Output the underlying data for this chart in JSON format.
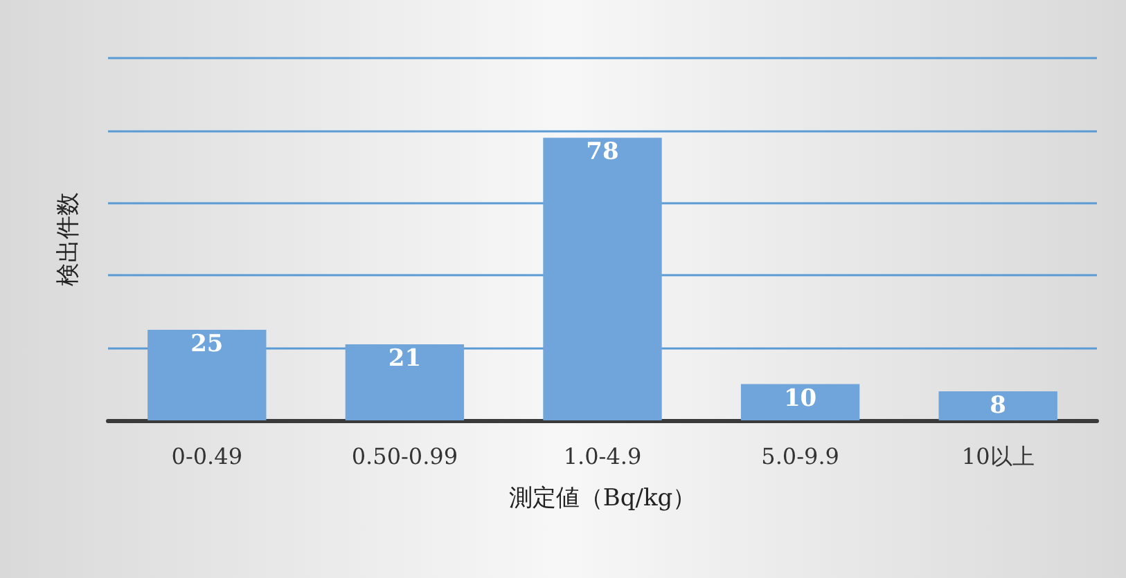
{
  "chart_data": {
    "type": "bar",
    "xlabel": "測定値（Bq/kg）",
    "ylabel": "検出件数",
    "categories": [
      "0-0.49",
      "0.50-0.99",
      "1.0-4.9",
      "5.0-9.9",
      "10以上"
    ],
    "values": [
      25,
      21,
      78,
      10,
      8
    ],
    "color": "#6fa5db",
    "ylim": [
      0,
      100
    ],
    "yticks": [
      {
        "value": 0,
        "label": null
      },
      {
        "value": 20,
        "label": null
      },
      {
        "value": 40,
        "label": null
      },
      {
        "value": 60,
        "label": null
      },
      {
        "value": 80,
        "label": null
      },
      {
        "value": 100,
        "label": null
      }
    ],
    "grid": "y",
    "tick_labels": "x",
    "data_labels": true
  }
}
